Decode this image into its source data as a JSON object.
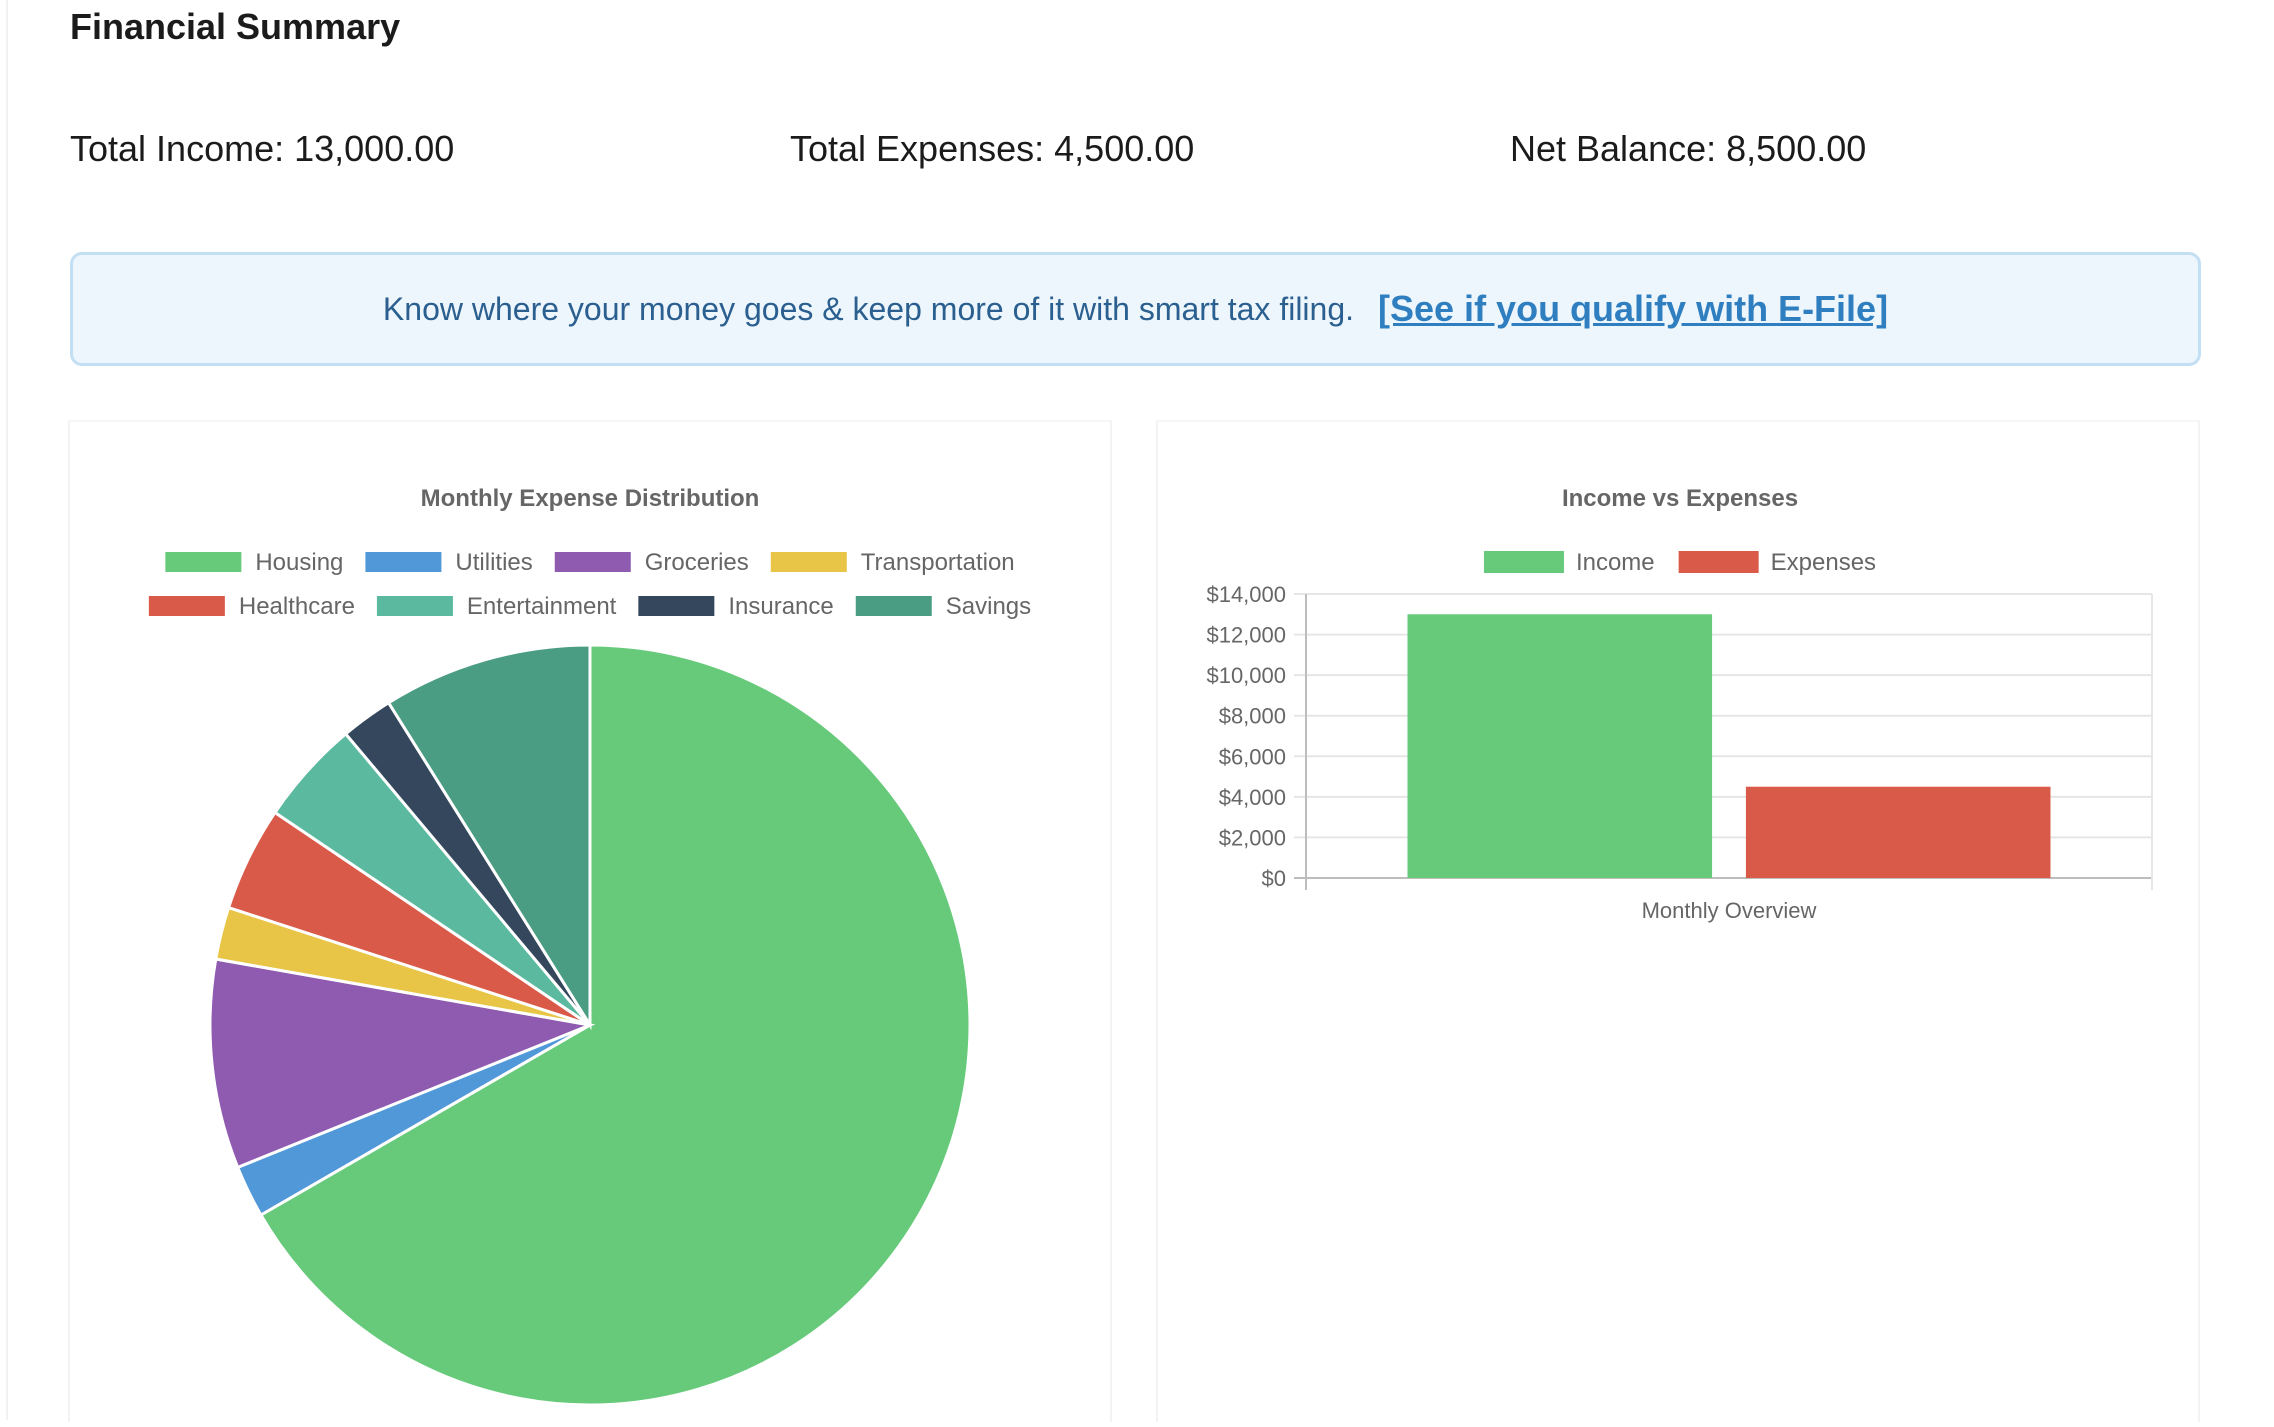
{
  "page": {
    "title": "Financial Summary",
    "total_income": "Total Income: 13,000.00",
    "total_expenses": "Total Expenses: 4,500.00",
    "net_balance": "Net Balance: 8,500.00"
  },
  "banner": {
    "text": "Know where your money goes & keep more of it with smart tax filing.",
    "link": "[See if you qualify with E-File]"
  },
  "chart_data": [
    {
      "type": "pie",
      "title": "Monthly Expense Distribution",
      "labels": [
        "Housing",
        "Utilities",
        "Groceries",
        "Transportation",
        "Healthcare",
        "Entertainment",
        "Insurance",
        "Savings"
      ],
      "values": [
        3000,
        100,
        400,
        100,
        200,
        200,
        100,
        400
      ],
      "colors": [
        "#66ca7a",
        "#5198d9",
        "#8f5bb0",
        "#e8c547",
        "#d95a48",
        "#5ab99e",
        "#34475d",
        "#4a9d83"
      ],
      "legend": "top"
    },
    {
      "type": "bar",
      "title": "Income vs Expenses",
      "categories": [
        "Monthly Overview"
      ],
      "series": [
        {
          "name": "Income",
          "values": [
            13000
          ],
          "color": "#66ca7a"
        },
        {
          "name": "Expenses",
          "values": [
            4500
          ],
          "color": "#d95a48"
        }
      ],
      "ylim": [
        0,
        14000
      ],
      "yticks": [
        "$14,000",
        "$12,000",
        "$10,000",
        "$8,000",
        "$6,000",
        "$4,000",
        "$2,000",
        "$0"
      ],
      "ytick_values": [
        14000,
        12000,
        10000,
        8000,
        6000,
        4000,
        2000,
        0
      ],
      "legend": "top"
    }
  ]
}
